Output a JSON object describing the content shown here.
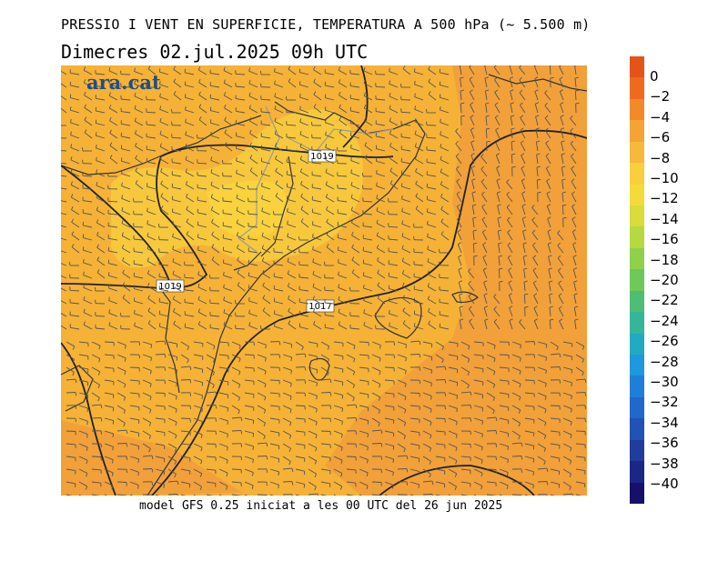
{
  "title": "PRESSIO I VENT EN SUPERFICIE, TEMPERATURA A 500 hPa (~ 5.500 m)",
  "subtitle": "Dimecres   02.jul.2025 09h UTC",
  "footer": "model GFS 0.25 iniciat a les 00 UTC del 26 jun 2025",
  "logo": "ara.cat",
  "isobar_labels": [
    "1019",
    "1019",
    "1017"
  ],
  "colorbar": {
    "labels": [
      "0",
      "-2",
      "-4",
      "-6",
      "-8",
      "-10",
      "-12",
      "-14",
      "-16",
      "-18",
      "-20",
      "-22",
      "-24",
      "-26",
      "-28",
      "-30",
      "-32",
      "-34",
      "-36",
      "-38",
      "-40"
    ],
    "colors": [
      "#e65319",
      "#ef6a1f",
      "#f28a2a",
      "#f5a336",
      "#f7b93b",
      "#f9cf3c",
      "#f3dc3a",
      "#d9dc3a",
      "#b5d93e",
      "#8fd14a",
      "#6ec85a",
      "#4ebe74",
      "#35b69a",
      "#22aac1",
      "#1f98de",
      "#1f7fd8",
      "#2168c8",
      "#2152b4",
      "#203c9c",
      "#1c2684",
      "#16106a"
    ]
  }
}
